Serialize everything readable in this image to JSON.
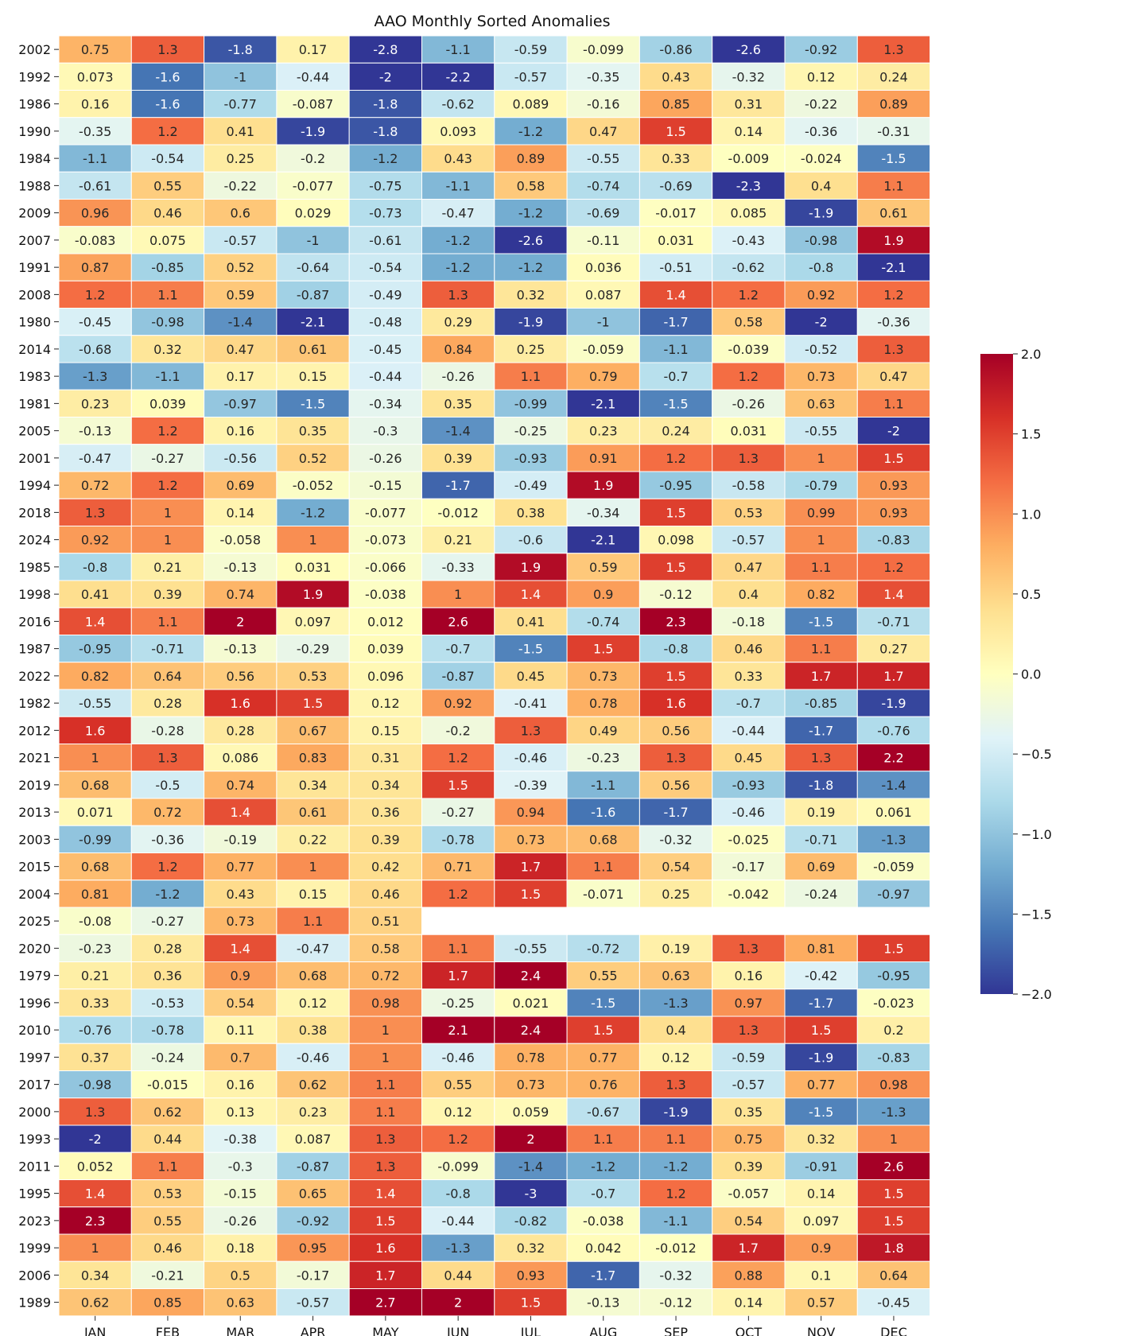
{
  "chart_data": {
    "type": "heatmap",
    "title": "AAO Monthly Sorted Anomalies",
    "xlabel": "",
    "ylabel": "",
    "colormap": "RdYlBu_r",
    "vmin": -2.0,
    "vmax": 2.0,
    "colorbar_ticks": [
      "2.0",
      "1.5",
      "1.0",
      "0.5",
      "0.0",
      "−0.5",
      "−1.0",
      "−1.5",
      "−2.0"
    ],
    "colorbar_values": [
      2.0,
      1.5,
      1.0,
      0.5,
      0.0,
      -0.5,
      -1.0,
      -1.5,
      -2.0
    ],
    "months": [
      "JAN",
      "FEB",
      "MAR",
      "APR",
      "MAY",
      "JUN",
      "JUL",
      "AUG",
      "SEP",
      "OCT",
      "NOV",
      "DEC"
    ],
    "years": [
      "2002",
      "1992",
      "1986",
      "1990",
      "1984",
      "1988",
      "2009",
      "2007",
      "1991",
      "2008",
      "1980",
      "2014",
      "1983",
      "1981",
      "2005",
      "2001",
      "1994",
      "2018",
      "2024",
      "1985",
      "1998",
      "2016",
      "1987",
      "2022",
      "1982",
      "2012",
      "2021",
      "2019",
      "2013",
      "2003",
      "2015",
      "2004",
      "2025",
      "2020",
      "1979",
      "1996",
      "2010",
      "1997",
      "2017",
      "2000",
      "1993",
      "2011",
      "1995",
      "2023",
      "1999",
      "2006",
      "1989"
    ],
    "labels": [
      [
        "0.75",
        "1.3",
        "-1.8",
        "0.17",
        "-2.8",
        "-1.1",
        "-0.59",
        "-0.099",
        "-0.86",
        "-2.6",
        "-0.92",
        "1.3"
      ],
      [
        "0.073",
        "-1.6",
        "-1",
        "-0.44",
        "-2",
        "-2.2",
        "-0.57",
        "-0.35",
        "0.43",
        "-0.32",
        "0.12",
        "0.24"
      ],
      [
        "0.16",
        "-1.6",
        "-0.77",
        "-0.087",
        "-1.8",
        "-0.62",
        "0.089",
        "-0.16",
        "0.85",
        "0.31",
        "-0.22",
        "0.89"
      ],
      [
        "-0.35",
        "1.2",
        "0.41",
        "-1.9",
        "-1.8",
        "0.093",
        "-1.2",
        "0.47",
        "1.5",
        "0.14",
        "-0.36",
        "-0.31"
      ],
      [
        "-1.1",
        "-0.54",
        "0.25",
        "-0.2",
        "-1.2",
        "0.43",
        "0.89",
        "-0.55",
        "0.33",
        "-0.009",
        "-0.024",
        "-1.5"
      ],
      [
        "-0.61",
        "0.55",
        "-0.22",
        "-0.077",
        "-0.75",
        "-1.1",
        "0.58",
        "-0.74",
        "-0.69",
        "-2.3",
        "0.4",
        "1.1"
      ],
      [
        "0.96",
        "0.46",
        "0.6",
        "0.029",
        "-0.73",
        "-0.47",
        "-1.2",
        "-0.69",
        "-0.017",
        "0.085",
        "-1.9",
        "0.61"
      ],
      [
        "-0.083",
        "0.075",
        "-0.57",
        "-1",
        "-0.61",
        "-1.2",
        "-2.6",
        "-0.11",
        "0.031",
        "-0.43",
        "-0.98",
        "1.9"
      ],
      [
        "0.87",
        "-0.85",
        "0.52",
        "-0.64",
        "-0.54",
        "-1.2",
        "-1.2",
        "0.036",
        "-0.51",
        "-0.62",
        "-0.8",
        "-2.1"
      ],
      [
        "1.2",
        "1.1",
        "0.59",
        "-0.87",
        "-0.49",
        "1.3",
        "0.32",
        "0.087",
        "1.4",
        "1.2",
        "0.92",
        "1.2"
      ],
      [
        "-0.45",
        "-0.98",
        "-1.4",
        "-2.1",
        "-0.48",
        "0.29",
        "-1.9",
        "-1",
        "-1.7",
        "0.58",
        "-2",
        "-0.36"
      ],
      [
        "-0.68",
        "0.32",
        "0.47",
        "0.61",
        "-0.45",
        "0.84",
        "0.25",
        "-0.059",
        "-1.1",
        "-0.039",
        "-0.52",
        "1.3"
      ],
      [
        "-1.3",
        "-1.1",
        "0.17",
        "0.15",
        "-0.44",
        "-0.26",
        "1.1",
        "0.79",
        "-0.7",
        "1.2",
        "0.73",
        "0.47"
      ],
      [
        "0.23",
        "0.039",
        "-0.97",
        "-1.5",
        "-0.34",
        "0.35",
        "-0.99",
        "-2.1",
        "-1.5",
        "-0.26",
        "0.63",
        "1.1"
      ],
      [
        "-0.13",
        "1.2",
        "0.16",
        "0.35",
        "-0.3",
        "-1.4",
        "-0.25",
        "0.23",
        "0.24",
        "0.031",
        "-0.55",
        "-2"
      ],
      [
        "-0.47",
        "-0.27",
        "-0.56",
        "0.52",
        "-0.26",
        "0.39",
        "-0.93",
        "0.91",
        "1.2",
        "1.3",
        "1",
        "1.5"
      ],
      [
        "0.72",
        "1.2",
        "0.69",
        "-0.052",
        "-0.15",
        "-1.7",
        "-0.49",
        "1.9",
        "-0.95",
        "-0.58",
        "-0.79",
        "0.93"
      ],
      [
        "1.3",
        "1",
        "0.14",
        "-1.2",
        "-0.077",
        "-0.012",
        "0.38",
        "-0.34",
        "1.5",
        "0.53",
        "0.99",
        "0.93"
      ],
      [
        "0.92",
        "1",
        "-0.058",
        "1",
        "-0.073",
        "0.21",
        "-0.6",
        "-2.1",
        "0.098",
        "-0.57",
        "1",
        "-0.83"
      ],
      [
        "-0.8",
        "0.21",
        "-0.13",
        "0.031",
        "-0.066",
        "-0.33",
        "1.9",
        "0.59",
        "1.5",
        "0.47",
        "1.1",
        "1.2"
      ],
      [
        "0.41",
        "0.39",
        "0.74",
        "1.9",
        "-0.038",
        "1",
        "1.4",
        "0.9",
        "-0.12",
        "0.4",
        "0.82",
        "1.4"
      ],
      [
        "1.4",
        "1.1",
        "2",
        "0.097",
        "0.012",
        "2.6",
        "0.41",
        "-0.74",
        "2.3",
        "-0.18",
        "-1.5",
        "-0.71"
      ],
      [
        "-0.95",
        "-0.71",
        "-0.13",
        "-0.29",
        "0.039",
        "-0.7",
        "-1.5",
        "1.5",
        "-0.8",
        "0.46",
        "1.1",
        "0.27"
      ],
      [
        "0.82",
        "0.64",
        "0.56",
        "0.53",
        "0.096",
        "-0.87",
        "0.45",
        "0.73",
        "1.5",
        "0.33",
        "1.7",
        "1.7"
      ],
      [
        "-0.55",
        "0.28",
        "1.6",
        "1.5",
        "0.12",
        "0.92",
        "-0.41",
        "0.78",
        "1.6",
        "-0.7",
        "-0.85",
        "-1.9"
      ],
      [
        "1.6",
        "-0.28",
        "0.28",
        "0.67",
        "0.15",
        "-0.2",
        "1.3",
        "0.49",
        "0.56",
        "-0.44",
        "-1.7",
        "-0.76"
      ],
      [
        "1",
        "1.3",
        "0.086",
        "0.83",
        "0.31",
        "1.2",
        "-0.46",
        "-0.23",
        "1.3",
        "0.45",
        "1.3",
        "2.2"
      ],
      [
        "0.68",
        "-0.5",
        "0.74",
        "0.34",
        "0.34",
        "1.5",
        "-0.39",
        "-1.1",
        "0.56",
        "-0.93",
        "-1.8",
        "-1.4"
      ],
      [
        "0.071",
        "0.72",
        "1.4",
        "0.61",
        "0.36",
        "-0.27",
        "0.94",
        "-1.6",
        "-1.7",
        "-0.46",
        "0.19",
        "0.061"
      ],
      [
        "-0.99",
        "-0.36",
        "-0.19",
        "0.22",
        "0.39",
        "-0.78",
        "0.73",
        "0.68",
        "-0.32",
        "-0.025",
        "-0.71",
        "-1.3"
      ],
      [
        "0.68",
        "1.2",
        "0.77",
        "1",
        "0.42",
        "0.71",
        "1.7",
        "1.1",
        "0.54",
        "-0.17",
        "0.69",
        "-0.059"
      ],
      [
        "0.81",
        "-1.2",
        "0.43",
        "0.15",
        "0.46",
        "1.2",
        "1.5",
        "-0.071",
        "0.25",
        "-0.042",
        "-0.24",
        "-0.97"
      ],
      [
        "-0.08",
        "-0.27",
        "0.73",
        "1.1",
        "0.51",
        null,
        null,
        null,
        null,
        null,
        null,
        null
      ],
      [
        "-0.23",
        "0.28",
        "1.4",
        "-0.47",
        "0.58",
        "1.1",
        "-0.55",
        "-0.72",
        "0.19",
        "1.3",
        "0.81",
        "1.5"
      ],
      [
        "0.21",
        "0.36",
        "0.9",
        "0.68",
        "0.72",
        "1.7",
        "2.4",
        "0.55",
        "0.63",
        "0.16",
        "-0.42",
        "-0.95"
      ],
      [
        "0.33",
        "-0.53",
        "0.54",
        "0.12",
        "0.98",
        "-0.25",
        "0.021",
        "-1.5",
        "-1.3",
        "0.97",
        "-1.7",
        "-0.023"
      ],
      [
        "-0.76",
        "-0.78",
        "0.11",
        "0.38",
        "1",
        "2.1",
        "2.4",
        "1.5",
        "0.4",
        "1.3",
        "1.5",
        "0.2"
      ],
      [
        "0.37",
        "-0.24",
        "0.7",
        "-0.46",
        "1",
        "-0.46",
        "0.78",
        "0.77",
        "0.12",
        "-0.59",
        "-1.9",
        "-0.83"
      ],
      [
        "-0.98",
        "-0.015",
        "0.16",
        "0.62",
        "1.1",
        "0.55",
        "0.73",
        "0.76",
        "1.3",
        "-0.57",
        "0.77",
        "0.98"
      ],
      [
        "1.3",
        "0.62",
        "0.13",
        "0.23",
        "1.1",
        "0.12",
        "0.059",
        "-0.67",
        "-1.9",
        "0.35",
        "-1.5",
        "-1.3"
      ],
      [
        "-2",
        "0.44",
        "-0.38",
        "0.087",
        "1.3",
        "1.2",
        "2",
        "1.1",
        "1.1",
        "0.75",
        "0.32",
        "1"
      ],
      [
        "0.052",
        "1.1",
        "-0.3",
        "-0.87",
        "1.3",
        "-0.099",
        "-1.4",
        "-1.2",
        "-1.2",
        "0.39",
        "-0.91",
        "2.6"
      ],
      [
        "1.4",
        "0.53",
        "-0.15",
        "0.65",
        "1.4",
        "-0.8",
        "-3",
        "-0.7",
        "1.2",
        "-0.057",
        "0.14",
        "1.5"
      ],
      [
        "2.3",
        "0.55",
        "-0.26",
        "-0.92",
        "1.5",
        "-0.44",
        "-0.82",
        "-0.038",
        "-1.1",
        "0.54",
        "0.097",
        "1.5"
      ],
      [
        "1",
        "0.46",
        "0.18",
        "0.95",
        "1.6",
        "-1.3",
        "0.32",
        "0.042",
        "-0.012",
        "1.7",
        "0.9",
        "1.8"
      ],
      [
        "0.34",
        "-0.21",
        "0.5",
        "-0.17",
        "1.7",
        "0.44",
        "0.93",
        "-1.7",
        "-0.32",
        "0.88",
        "0.1",
        "0.64"
      ],
      [
        "0.62",
        "0.85",
        "0.63",
        "-0.57",
        "2.7",
        "2",
        "1.5",
        "-0.13",
        "-0.12",
        "0.14",
        "0.57",
        "-0.45"
      ]
    ]
  }
}
